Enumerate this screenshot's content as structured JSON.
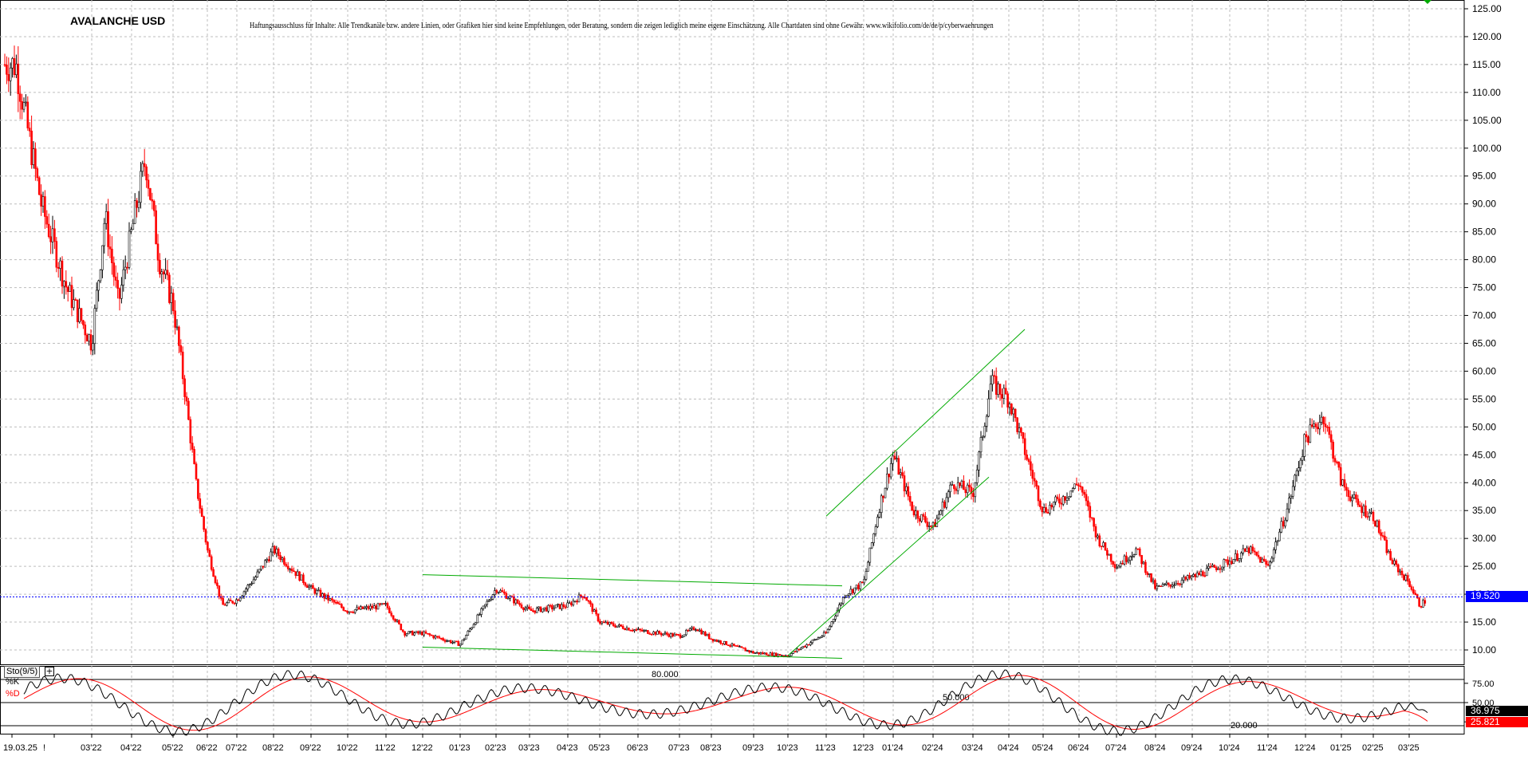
{
  "title": "AVALANCHE USD",
  "disclaimer": "Haftungsausschluss für Inhalte: Alle Trendkanäle bzw. andere Linien, oder Grafiken hier sind keine Empfehlungen, oder Beratung, sondern die zeigen lediglich meine eigene Einschätzung. Alle Chartdaten sind ohne Gewähr. www.wikifolio.com/de/de/p/cyberwaehrungen",
  "colors": {
    "up_candle": "#000000",
    "down_candle": "#ff0000",
    "grid": "#bdbdbd",
    "trendline": "#00aa00",
    "current_price_line": "#0000ff",
    "current_price_box": "#0000ff",
    "stoch_k": "#000000",
    "stoch_d": "#ff0000",
    "stoch_d_box": "#ff0000",
    "stoch_k_box": "#000000"
  },
  "chart_data": {
    "type": "candlestick",
    "price_panel": {
      "y_range": [
        7.5,
        127.5
      ],
      "y_ticks": [
        "125.00",
        "120.00",
        "115.00",
        "110.00",
        "105.00",
        "100.00",
        "95.00",
        "90.00",
        "85.00",
        "80.00",
        "75.00",
        "70.00",
        "65.00",
        "60.00",
        "55.00",
        "50.00",
        "45.00",
        "40.00",
        "35.00",
        "30.00",
        "25.00",
        "20.00",
        "15.00",
        "10.00"
      ],
      "x_tick_labels": [
        "19.03.25",
        "!",
        "03'22",
        "04'22",
        "05'22",
        "06'22",
        "07'22",
        "08'22",
        "09'22",
        "10'22",
        "11'22",
        "12'22",
        "01'23",
        "02'23",
        "03'23",
        "04'23",
        "05'23",
        "06'23",
        "07'23",
        "08'23",
        "09'23",
        "10'23",
        "11'23",
        "12'23",
        "01'24",
        "02'24",
        "03'24",
        "04'24",
        "05'24",
        "06'24",
        "07'24",
        "08'24",
        "09'24",
        "10'24",
        "11'24",
        "12'24",
        "01'25",
        "02'25",
        "03'25"
      ],
      "grid": true,
      "current_price": 19.52,
      "current_price_label": "19.520",
      "price_path": [
        {
          "month": "02'22",
          "value": 115
        },
        {
          "month": "02'22",
          "value": 90
        },
        {
          "month": "02'22",
          "value": 75
        },
        {
          "month": "03'22",
          "value": 65
        },
        {
          "month": "03'22",
          "value": 88
        },
        {
          "month": "03'22",
          "value": 72
        },
        {
          "month": "04'22",
          "value": 85
        },
        {
          "month": "04'22",
          "value": 98
        },
        {
          "month": "04'22",
          "value": 80
        },
        {
          "month": "05'22",
          "value": 72
        },
        {
          "month": "05'22",
          "value": 57
        },
        {
          "month": "05'22",
          "value": 40
        },
        {
          "month": "06'22",
          "value": 28
        },
        {
          "month": "06'22",
          "value": 18
        },
        {
          "month": "07'22",
          "value": 19
        },
        {
          "month": "07'22",
          "value": 23
        },
        {
          "month": "08'22",
          "value": 28
        },
        {
          "month": "09'22",
          "value": 21
        },
        {
          "month": "10'22",
          "value": 17
        },
        {
          "month": "11'22",
          "value": 18
        },
        {
          "month": "11'22",
          "value": 13
        },
        {
          "month": "12'22",
          "value": 13
        },
        {
          "month": "01'23",
          "value": 11
        },
        {
          "month": "01'23",
          "value": 16
        },
        {
          "month": "02'23",
          "value": 21
        },
        {
          "month": "03'23",
          "value": 17
        },
        {
          "month": "04'23",
          "value": 18
        },
        {
          "month": "04'23",
          "value": 20
        },
        {
          "month": "05'23",
          "value": 15
        },
        {
          "month": "06'23",
          "value": 13.5
        },
        {
          "month": "07'23",
          "value": 12.5
        },
        {
          "month": "07'23",
          "value": 14
        },
        {
          "month": "08'23",
          "value": 12
        },
        {
          "month": "09'23",
          "value": 9.5
        },
        {
          "month": "10'23",
          "value": 9
        },
        {
          "month": "11'23",
          "value": 13
        },
        {
          "month": "11'23",
          "value": 20
        },
        {
          "month": "12'23",
          "value": 22
        },
        {
          "month": "12'23",
          "value": 35
        },
        {
          "month": "01'24",
          "value": 45
        },
        {
          "month": "01'24",
          "value": 35
        },
        {
          "month": "02'24",
          "value": 32
        },
        {
          "month": "02'24",
          "value": 40
        },
        {
          "month": "03'24",
          "value": 38
        },
        {
          "month": "03'24",
          "value": 58
        },
        {
          "month": "04'24",
          "value": 55
        },
        {
          "month": "04'24",
          "value": 45
        },
        {
          "month": "05'24",
          "value": 35
        },
        {
          "month": "05'24",
          "value": 37
        },
        {
          "month": "06'24",
          "value": 40
        },
        {
          "month": "06'24",
          "value": 30
        },
        {
          "month": "07'24",
          "value": 25
        },
        {
          "month": "07'24",
          "value": 28
        },
        {
          "month": "08'24",
          "value": 21
        },
        {
          "month": "09'24",
          "value": 23
        },
        {
          "month": "10'24",
          "value": 26
        },
        {
          "month": "10'24",
          "value": 28
        },
        {
          "month": "11'24",
          "value": 25
        },
        {
          "month": "11'24",
          "value": 35
        },
        {
          "month": "12'24",
          "value": 48
        },
        {
          "month": "12'24",
          "value": 52
        },
        {
          "month": "01'25",
          "value": 40
        },
        {
          "month": "01'25",
          "value": 36
        },
        {
          "month": "02'25",
          "value": 34
        },
        {
          "month": "02'25",
          "value": 26
        },
        {
          "month": "03'25",
          "value": 22
        },
        {
          "month": "03'25",
          "value": 18
        },
        {
          "month": "03'25",
          "value": 19.5
        }
      ],
      "trendlines": [
        {
          "from": {
            "month": "12'22",
            "value": 23.5
          },
          "to": {
            "month": "11'23",
            "value": 21.5
          }
        },
        {
          "from": {
            "month": "12'22",
            "value": 10.5
          },
          "to": {
            "month": "11'23",
            "value": 8.5
          }
        },
        {
          "from": {
            "month": "10'23",
            "value": 9
          },
          "to": {
            "month": "03'24",
            "value": 41
          }
        },
        {
          "from": {
            "month": "11'23",
            "value": 34
          },
          "to": {
            "month": "04'24",
            "value": 67.5
          }
        }
      ]
    },
    "oscillator_panel": {
      "name": "Sto(9/5)",
      "series": [
        {
          "name": "%K"
        },
        {
          "name": "%D"
        }
      ],
      "levels": [
        80,
        50,
        20
      ],
      "level_labels": [
        "80.000",
        "50.000",
        "20.000"
      ],
      "y_ticks": [
        "75.00",
        "50.00",
        "25.00"
      ],
      "k_last": 36.975,
      "k_last_label": "36.975",
      "d_last": 25.821,
      "d_last_label": "25.821"
    }
  }
}
